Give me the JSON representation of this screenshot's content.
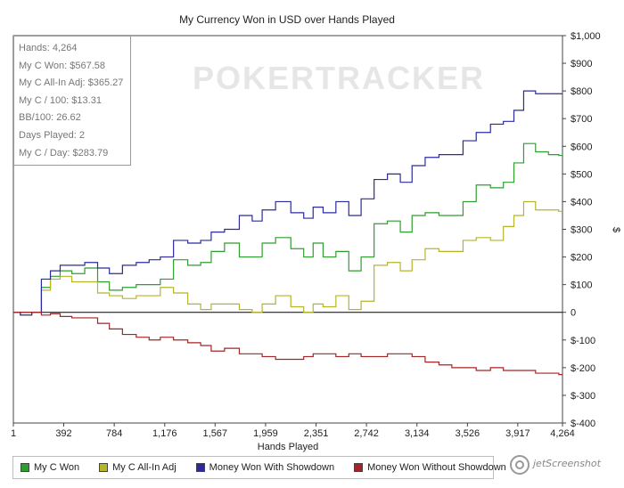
{
  "chart_data": {
    "type": "line",
    "title": "My Currency Won in USD over Hands Played",
    "xlabel": "Hands Played",
    "ylabel": "$",
    "xlim": [
      1,
      4264
    ],
    "ylim": [
      -400,
      1000
    ],
    "x_ticks": [
      1,
      392,
      784,
      1176,
      1567,
      1959,
      2351,
      2742,
      3134,
      3526,
      3917,
      4264
    ],
    "x_tick_labels": [
      "1",
      "392",
      "784",
      "1,176",
      "1,567",
      "1,959",
      "2,351",
      "2,742",
      "3,134",
      "3,526",
      "3,917",
      "4,264"
    ],
    "y_ticks": [
      -400,
      -300,
      -200,
      -100,
      0,
      100,
      200,
      300,
      400,
      500,
      600,
      700,
      800,
      900,
      1000
    ],
    "y_tick_labels": [
      "$-400",
      "$-300",
      "$-200",
      "$-100",
      "0",
      "$100",
      "$200",
      "$300",
      "$400",
      "$500",
      "$600",
      "$700",
      "$800",
      "$900",
      "$1,000"
    ],
    "watermark": "POKERTRACKER",
    "series": [
      {
        "name": "My C Won",
        "color": "#2e9e2e",
        "x": [
          1,
          100,
          180,
          250,
          320,
          400,
          500,
          600,
          700,
          784,
          900,
          1000,
          1100,
          1176,
          1300,
          1400,
          1500,
          1567,
          1700,
          1800,
          1900,
          1959,
          2100,
          2200,
          2300,
          2351,
          2450,
          2550,
          2650,
          2742,
          2850,
          2950,
          3050,
          3134,
          3250,
          3350,
          3450,
          3526,
          3650,
          3750,
          3850,
          3917,
          4000,
          4100,
          4200,
          4264
        ],
        "values": [
          0,
          -10,
          0,
          90,
          130,
          150,
          140,
          160,
          110,
          80,
          90,
          100,
          100,
          120,
          190,
          170,
          180,
          220,
          250,
          200,
          200,
          250,
          270,
          230,
          200,
          250,
          200,
          220,
          150,
          200,
          320,
          330,
          290,
          350,
          360,
          350,
          350,
          400,
          460,
          450,
          470,
          540,
          610,
          580,
          570,
          567
        ]
      },
      {
        "name": "My C All-In Adj",
        "color": "#b5b52a",
        "x": [
          1,
          100,
          180,
          250,
          320,
          400,
          500,
          600,
          700,
          784,
          900,
          1000,
          1100,
          1176,
          1300,
          1400,
          1500,
          1567,
          1700,
          1800,
          1900,
          1959,
          2100,
          2200,
          2300,
          2351,
          2450,
          2550,
          2650,
          2742,
          2850,
          2950,
          3050,
          3134,
          3250,
          3350,
          3450,
          3526,
          3650,
          3750,
          3850,
          3917,
          4000,
          4100,
          4200,
          4264
        ],
        "values": [
          0,
          -10,
          0,
          80,
          120,
          130,
          110,
          110,
          70,
          60,
          50,
          60,
          60,
          90,
          70,
          30,
          10,
          30,
          30,
          10,
          0,
          30,
          60,
          20,
          0,
          30,
          20,
          60,
          10,
          40,
          170,
          180,
          150,
          190,
          230,
          220,
          220,
          260,
          270,
          260,
          310,
          350,
          400,
          370,
          370,
          365
        ]
      },
      {
        "name": "Money Won With Showdown",
        "color": "#2b2b9e",
        "x": [
          1,
          100,
          180,
          250,
          320,
          400,
          500,
          600,
          700,
          784,
          900,
          1000,
          1100,
          1176,
          1300,
          1400,
          1500,
          1567,
          1700,
          1800,
          1900,
          1959,
          2100,
          2200,
          2300,
          2351,
          2450,
          2550,
          2650,
          2742,
          2850,
          2950,
          3050,
          3134,
          3250,
          3350,
          3450,
          3526,
          3650,
          3750,
          3850,
          3917,
          4000,
          4100,
          4200,
          4264
        ],
        "values": [
          0,
          -10,
          0,
          120,
          150,
          170,
          170,
          180,
          160,
          140,
          170,
          180,
          190,
          200,
          260,
          250,
          260,
          290,
          300,
          350,
          330,
          370,
          400,
          360,
          340,
          380,
          360,
          400,
          350,
          410,
          480,
          500,
          470,
          530,
          560,
          570,
          570,
          620,
          650,
          680,
          690,
          730,
          800,
          790,
          790,
          790
        ]
      },
      {
        "name": "Money Won Without Showdown",
        "color": "#a52424",
        "x": [
          1,
          100,
          180,
          250,
          320,
          400,
          500,
          600,
          700,
          784,
          900,
          1000,
          1100,
          1176,
          1300,
          1400,
          1500,
          1567,
          1700,
          1800,
          1900,
          1959,
          2100,
          2200,
          2300,
          2351,
          2450,
          2550,
          2650,
          2742,
          2850,
          2950,
          3050,
          3134,
          3250,
          3350,
          3450,
          3526,
          3650,
          3750,
          3850,
          3917,
          4000,
          4100,
          4200,
          4264
        ],
        "values": [
          0,
          0,
          0,
          -10,
          -5,
          -15,
          -20,
          -20,
          -40,
          -60,
          -80,
          -90,
          -100,
          -90,
          -100,
          -110,
          -120,
          -140,
          -130,
          -150,
          -150,
          -160,
          -170,
          -170,
          -160,
          -150,
          -150,
          -160,
          -150,
          -160,
          -160,
          -150,
          -150,
          -160,
          -180,
          -190,
          -200,
          -200,
          -210,
          -200,
          -210,
          -210,
          -210,
          -220,
          -220,
          -225
        ]
      }
    ]
  },
  "stats": [
    "Hands: 4,264",
    "My C Won: $567.58",
    "My C All-In Adj: $365.27",
    "My C / 100: $13.31",
    "BB/100: 26.62",
    "Days Played: 2",
    "My C / Day: $283.79"
  ],
  "legend": [
    {
      "label": "My C Won",
      "color": "#2e9e2e"
    },
    {
      "label": "My C All-In Adj",
      "color": "#b5b52a"
    },
    {
      "label": "Money Won With Showdown",
      "color": "#2b2b9e"
    },
    {
      "label": "Money Won Without Showdown",
      "color": "#a52424"
    }
  ],
  "credit": "jetScreenshot"
}
